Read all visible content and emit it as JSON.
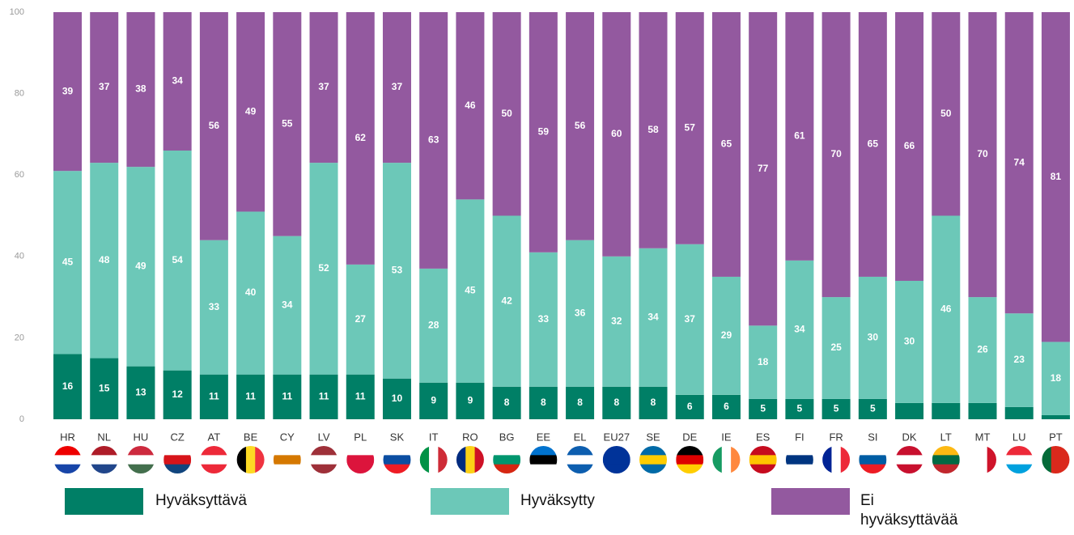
{
  "chart_data": {
    "type": "stacked_bar",
    "categories": [
      "HR",
      "NL",
      "HU",
      "CZ",
      "AT",
      "BE",
      "CY",
      "LV",
      "PL",
      "SK",
      "IT",
      "RO",
      "BG",
      "EE",
      "EL",
      "EU27",
      "SE",
      "DE",
      "IE",
      "ES",
      "FI",
      "FR",
      "SI",
      "DK",
      "LT",
      "MT",
      "LU",
      "PT"
    ],
    "series": [
      {
        "name": "Hyväksyttävä",
        "color": "#007f66",
        "values": [
          16,
          15,
          13,
          12,
          11,
          11,
          11,
          11,
          11,
          10,
          9,
          9,
          8,
          8,
          8,
          8,
          8,
          6,
          6,
          5,
          5,
          5,
          5,
          4,
          4,
          4,
          3,
          1
        ],
        "value_labels": [
          "16",
          "15",
          "13",
          "12",
          "11",
          "11",
          "11",
          "11",
          "11",
          "10",
          "9",
          "9",
          "8",
          "8",
          "8",
          "8",
          "8",
          "6",
          "6",
          "5",
          "5",
          "5",
          "5",
          null,
          null,
          null,
          null,
          null
        ]
      },
      {
        "name": "Hyväksytty",
        "color": "#6cc8b8",
        "values": [
          45,
          48,
          49,
          54,
          33,
          40,
          34,
          52,
          27,
          53,
          28,
          45,
          42,
          33,
          36,
          32,
          34,
          37,
          29,
          18,
          34,
          25,
          30,
          30,
          46,
          26,
          23,
          18
        ]
      },
      {
        "name": "Ei hyväksyttävää",
        "color": "#93599f",
        "values": [
          39,
          37,
          38,
          34,
          56,
          49,
          55,
          37,
          62,
          37,
          63,
          46,
          50,
          59,
          56,
          60,
          58,
          57,
          65,
          77,
          61,
          70,
          65,
          66,
          50,
          70,
          74,
          81
        ]
      }
    ],
    "ylim": [
      0,
      100
    ],
    "yticks": [
      0,
      20,
      40,
      60,
      80,
      100
    ],
    "grid": false
  }
}
